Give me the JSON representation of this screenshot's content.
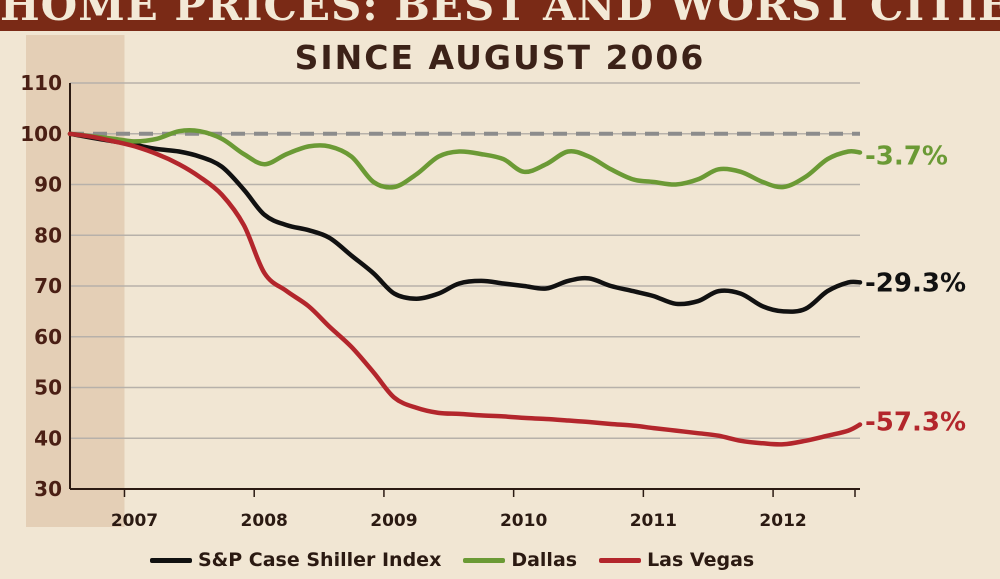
{
  "page": {
    "title": "HOME PRICES: BEST AND WORST CITIES",
    "subtitle": "SINCE AUGUST 2006"
  },
  "colors": {
    "background": "#f1e6d3",
    "title_bar": "#7a2a16",
    "shaded_band": "#e4cfb6",
    "grid": "#b7b1aa",
    "baseline": "#8c8c8c",
    "case_shiller": "#111111",
    "dallas": "#6b9a35",
    "las_vegas": "#b3262c"
  },
  "chart_data": {
    "type": "line",
    "title": "HOME PRICES: BEST AND WORST CITIES",
    "subtitle": "SINCE AUGUST 2006",
    "xlabel": "",
    "ylabel": "",
    "x_domain": [
      2006.58,
      2012.67
    ],
    "ylim": [
      30,
      110
    ],
    "yticks": [
      30,
      40,
      50,
      60,
      70,
      80,
      90,
      100,
      110
    ],
    "xticks": [
      {
        "label": "2007",
        "value": 2007.0
      },
      {
        "label": "2008",
        "value": 2008.0
      },
      {
        "label": "2009",
        "value": 2009.0
      },
      {
        "label": "2010",
        "value": 2010.0
      },
      {
        "label": "2011",
        "value": 2011.0
      },
      {
        "label": "2012",
        "value": 2012.0
      }
    ],
    "grid": true,
    "legend_position": "bottom",
    "reference_line": {
      "y": 100,
      "style": "dashed"
    },
    "shaded_region": [
      2006.58,
      2007.0
    ],
    "series": [
      {
        "name": "S&P Case Shiller Index",
        "key": "case_shiller",
        "end_label": "-29.3%",
        "x": [
          2006.58,
          2006.75,
          2006.92,
          2007.08,
          2007.25,
          2007.42,
          2007.58,
          2007.75,
          2007.92,
          2008.08,
          2008.25,
          2008.42,
          2008.58,
          2008.75,
          2008.92,
          2009.08,
          2009.25,
          2009.42,
          2009.58,
          2009.75,
          2009.92,
          2010.08,
          2010.25,
          2010.42,
          2010.58,
          2010.75,
          2010.92,
          2011.08,
          2011.25,
          2011.42,
          2011.58,
          2011.75,
          2011.92,
          2012.08,
          2012.25,
          2012.42,
          2012.58,
          2012.67
        ],
        "values": [
          100,
          99.2,
          98.5,
          97.8,
          97,
          96.5,
          95.5,
          93.5,
          89,
          84,
          82,
          81,
          79.5,
          76,
          72.5,
          68.5,
          67.5,
          68.5,
          70.5,
          71,
          70.5,
          70,
          69.5,
          71,
          71.5,
          70,
          69,
          68,
          66.5,
          67,
          69,
          68.5,
          66,
          65,
          65.5,
          69,
          70.7,
          70.7
        ]
      },
      {
        "name": "Dallas",
        "key": "dallas",
        "end_label": "-3.7%",
        "x": [
          2006.58,
          2006.75,
          2006.92,
          2007.08,
          2007.25,
          2007.42,
          2007.58,
          2007.75,
          2007.92,
          2008.08,
          2008.25,
          2008.42,
          2008.58,
          2008.75,
          2008.92,
          2009.08,
          2009.25,
          2009.42,
          2009.58,
          2009.75,
          2009.92,
          2010.08,
          2010.25,
          2010.42,
          2010.58,
          2010.75,
          2010.92,
          2011.08,
          2011.25,
          2011.42,
          2011.58,
          2011.75,
          2011.92,
          2012.08,
          2012.25,
          2012.42,
          2012.58,
          2012.67
        ],
        "values": [
          100,
          99.5,
          99,
          98.5,
          99,
          100.5,
          100.5,
          99,
          96,
          94,
          96,
          97.5,
          97.5,
          95.5,
          90.5,
          89.5,
          92,
          95.5,
          96.5,
          96,
          95,
          92.5,
          94,
          96.5,
          95.5,
          93,
          91,
          90.5,
          90,
          91,
          93,
          92.5,
          90.5,
          89.5,
          91.5,
          95,
          96.5,
          96.3
        ]
      },
      {
        "name": "Las Vegas",
        "key": "las_vegas",
        "end_label": "-57.3%",
        "x": [
          2006.58,
          2006.75,
          2006.92,
          2007.08,
          2007.25,
          2007.42,
          2007.58,
          2007.75,
          2007.92,
          2008.08,
          2008.25,
          2008.42,
          2008.58,
          2008.75,
          2008.92,
          2009.08,
          2009.25,
          2009.42,
          2009.58,
          2009.75,
          2009.92,
          2010.08,
          2010.25,
          2010.42,
          2010.58,
          2010.75,
          2010.92,
          2011.08,
          2011.25,
          2011.42,
          2011.58,
          2011.75,
          2011.92,
          2012.08,
          2012.25,
          2012.42,
          2012.58,
          2012.67
        ],
        "values": [
          100,
          99.4,
          98.5,
          97.5,
          96,
          94,
          91.5,
          88,
          82,
          72.5,
          69,
          66,
          62,
          58,
          53,
          48,
          46,
          45,
          44.8,
          44.5,
          44.3,
          44,
          43.8,
          43.5,
          43.2,
          42.8,
          42.5,
          42,
          41.5,
          41,
          40.5,
          39.5,
          39,
          38.8,
          39.5,
          40.5,
          41.5,
          42.7
        ]
      }
    ]
  }
}
